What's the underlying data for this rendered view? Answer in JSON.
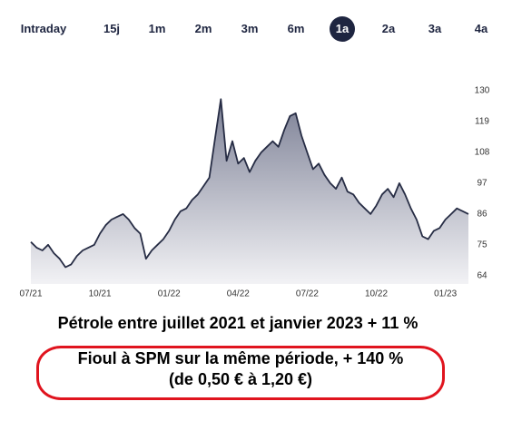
{
  "tabs": [
    "Intraday",
    "15j",
    "1m",
    "2m",
    "3m",
    "6m",
    "1a",
    "2a",
    "3a",
    "4a"
  ],
  "selected_tab": "1a",
  "chart_data": {
    "type": "area",
    "color": "#262c44",
    "categories": [
      "07/21",
      null,
      null,
      null,
      null,
      null,
      null,
      null,
      null,
      null,
      null,
      null,
      "10/21",
      null,
      null,
      null,
      null,
      null,
      null,
      null,
      null,
      null,
      null,
      null,
      "01/22",
      null,
      null,
      null,
      null,
      null,
      null,
      null,
      null,
      null,
      null,
      null,
      "04/22",
      null,
      null,
      null,
      null,
      null,
      null,
      null,
      null,
      null,
      null,
      null,
      "07/22",
      null,
      null,
      null,
      null,
      null,
      null,
      null,
      null,
      null,
      null,
      null,
      "10/22",
      null,
      null,
      null,
      null,
      null,
      null,
      null,
      null,
      null,
      null,
      null,
      "01/23",
      null,
      null,
      null,
      null
    ],
    "values": [
      76,
      74,
      73,
      75,
      72,
      70,
      67,
      68,
      71,
      73,
      74,
      75,
      79,
      82,
      84,
      85,
      86,
      84,
      81,
      79,
      70,
      73,
      75,
      77,
      80,
      84,
      87,
      88,
      91,
      93,
      96,
      99,
      113,
      127,
      105,
      112,
      104,
      106,
      101,
      105,
      108,
      110,
      112,
      110,
      116,
      121,
      122,
      114,
      108,
      102,
      104,
      100,
      97,
      95,
      99,
      94,
      93,
      90,
      88,
      86,
      89,
      93,
      95,
      92,
      97,
      93,
      88,
      84,
      78,
      77,
      80,
      81,
      84,
      86,
      88,
      87,
      86
    ],
    "ylim": [
      61,
      131
    ],
    "yticks": [
      64,
      75,
      86,
      97,
      108,
      119,
      130
    ],
    "grid": false
  },
  "captions": {
    "line1": "Pétrole entre juillet 2021 et janvier 2023 + 11 %",
    "line2": "Fioul à SPM sur la même période, + 140 %",
    "line3": "(de 0,50 € à 1,20 €)"
  }
}
